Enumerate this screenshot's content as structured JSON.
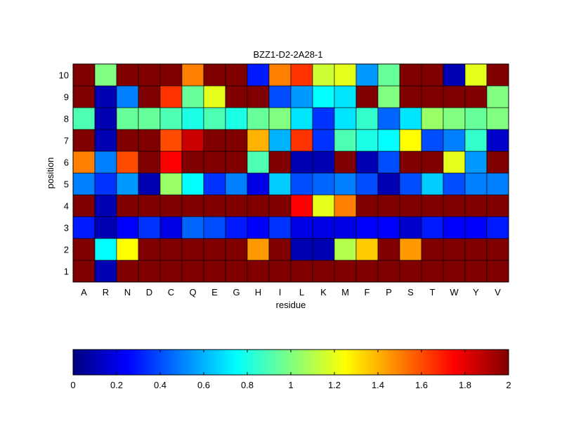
{
  "chart_data": {
    "type": "heatmap",
    "title": "BZZ1-D2-2A28-1",
    "xlabel": "residue",
    "ylabel": "position",
    "x": [
      "A",
      "R",
      "N",
      "D",
      "C",
      "Q",
      "E",
      "G",
      "H",
      "I",
      "L",
      "K",
      "M",
      "F",
      "P",
      "S",
      "T",
      "W",
      "Y",
      "V"
    ],
    "y": [
      "1",
      "2",
      "3",
      "4",
      "5",
      "6",
      "7",
      "8",
      "9",
      "10"
    ],
    "values": [
      [
        2.0,
        0.1,
        2.0,
        2.0,
        2.0,
        2.0,
        2.0,
        2.0,
        2.0,
        2.0,
        2.0,
        2.0,
        2.0,
        2.0,
        2.0,
        2.0,
        2.0,
        2.0,
        2.0,
        2.0
      ],
      [
        2.0,
        0.75,
        1.25,
        2.0,
        2.0,
        2.0,
        2.0,
        2.0,
        1.45,
        2.0,
        0.1,
        0.1,
        1.1,
        1.35,
        2.0,
        1.45,
        2.0,
        2.0,
        2.0,
        2.0
      ],
      [
        0.3,
        0.1,
        0.25,
        0.35,
        0.2,
        0.45,
        0.4,
        0.3,
        0.25,
        0.35,
        0.2,
        0.2,
        0.2,
        0.25,
        0.25,
        0.15,
        0.3,
        0.25,
        0.25,
        0.3
      ],
      [
        2.0,
        0.1,
        2.0,
        2.0,
        2.0,
        2.0,
        2.0,
        2.0,
        2.0,
        2.0,
        1.75,
        1.2,
        1.5,
        2.0,
        2.0,
        2.0,
        2.0,
        2.0,
        2.0,
        2.0
      ],
      [
        0.5,
        0.35,
        0.55,
        0.1,
        1.05,
        0.75,
        0.35,
        0.5,
        0.2,
        0.65,
        0.4,
        0.45,
        0.5,
        0.4,
        0.1,
        0.4,
        0.65,
        0.4,
        0.5,
        0.5
      ],
      [
        1.5,
        0.5,
        1.6,
        2.0,
        1.75,
        2.0,
        2.0,
        2.0,
        0.9,
        2.0,
        0.1,
        0.1,
        2.0,
        0.1,
        0.4,
        2.0,
        2.0,
        1.2,
        0.55,
        2.0
      ],
      [
        2.0,
        0.1,
        2.0,
        2.0,
        1.6,
        1.85,
        2.0,
        2.0,
        1.4,
        0.6,
        1.65,
        0.35,
        0.9,
        0.8,
        0.75,
        1.25,
        0.4,
        0.5,
        0.85,
        0.15
      ],
      [
        0.9,
        0.1,
        0.95,
        0.95,
        0.9,
        0.8,
        0.9,
        0.8,
        0.95,
        1.0,
        0.7,
        0.35,
        0.7,
        0.85,
        0.45,
        0.7,
        1.05,
        1.0,
        0.95,
        1.0
      ],
      [
        2.0,
        0.1,
        0.5,
        2.0,
        1.65,
        0.95,
        1.2,
        2.0,
        2.0,
        0.4,
        0.55,
        0.75,
        0.7,
        2.0,
        1.0,
        2.0,
        2.0,
        2.0,
        2.0,
        1.0
      ],
      [
        2.0,
        1.0,
        2.0,
        2.0,
        2.0,
        1.5,
        2.0,
        2.0,
        0.3,
        1.5,
        1.65,
        1.15,
        1.2,
        0.55,
        0.95,
        2.0,
        2.0,
        0.1,
        1.2,
        2.0
      ]
    ],
    "colorbar": {
      "colormap": "jet",
      "range": [
        0,
        2
      ],
      "ticks": [
        "0",
        "0.2",
        "0.4",
        "0.6",
        "0.8",
        "1",
        "1.2",
        "1.4",
        "1.6",
        "1.8",
        "2"
      ]
    },
    "grid": true,
    "colorbar_placement": "bottom"
  }
}
